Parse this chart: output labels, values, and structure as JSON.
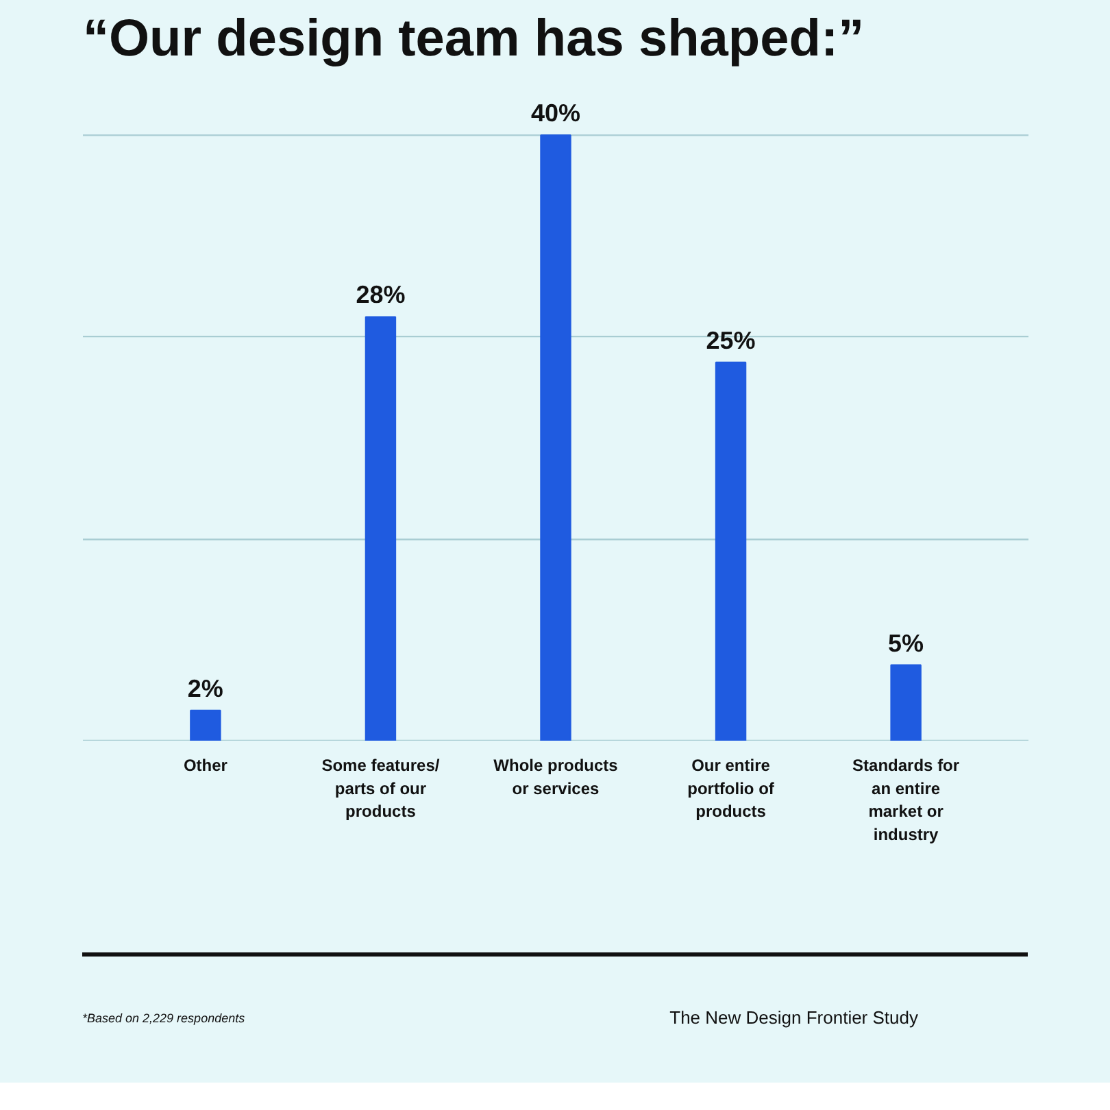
{
  "chart_data": {
    "type": "bar",
    "title": "“Our design team has shaped:”",
    "categories": [
      "Other",
      "Some features/ parts of our products",
      "Whole products or services",
      "Our entire portfolio of products",
      "Standards for an entire market or industry"
    ],
    "values": [
      2,
      28,
      40,
      25,
      5
    ],
    "value_labels": [
      "2%",
      "28%",
      "40%",
      "25%",
      "5%"
    ],
    "color": "#1f5be0",
    "tick_labels": "x",
    "ref_lines": [
      {
        "axis": "y",
        "value": 0,
        "color": "#a9cdd3"
      },
      {
        "axis": "y",
        "value": 13.3,
        "color": "#a9cdd3"
      },
      {
        "axis": "y",
        "value": 26.7,
        "color": "#a9cdd3"
      },
      {
        "axis": "y",
        "value": 40,
        "color": "#a9cdd3"
      }
    ],
    "annotations": [
      "*Based on 2,229 respondents",
      "The New Design Frontier Study"
    ]
  }
}
